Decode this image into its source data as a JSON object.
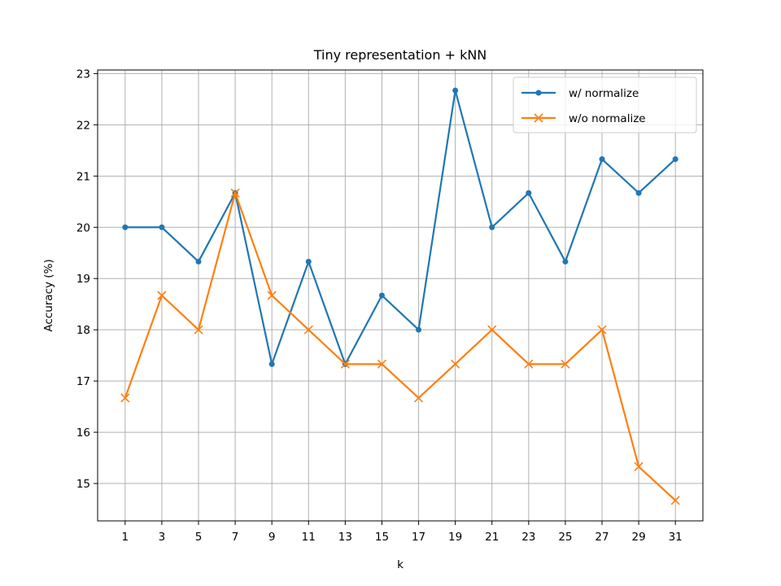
{
  "chart_data": {
    "type": "line",
    "title": "Tiny representation + kNN",
    "xlabel": "k",
    "ylabel": "Accuracy (%)",
    "x": [
      1,
      3,
      5,
      7,
      9,
      11,
      13,
      15,
      17,
      19,
      21,
      23,
      25,
      27,
      29,
      31
    ],
    "x_ticks": [
      "1",
      "3",
      "5",
      "7",
      "9",
      "11",
      "13",
      "15",
      "17",
      "19",
      "21",
      "23",
      "25",
      "27",
      "29",
      "31"
    ],
    "y_ticks": [
      "15",
      "16",
      "17",
      "18",
      "19",
      "20",
      "21",
      "22",
      "23"
    ],
    "xlim": [
      -0.5,
      32.5
    ],
    "ylim": [
      14.27,
      23.07
    ],
    "grid": true,
    "legend_position": "top-right",
    "series": [
      {
        "name": "w/ normalize",
        "color": "#1f77b4",
        "marker": "dot",
        "values": [
          20.0,
          20.0,
          19.33,
          20.67,
          17.33,
          19.33,
          17.33,
          18.67,
          18.0,
          22.67,
          20.0,
          20.67,
          19.33,
          21.33,
          20.67,
          21.33
        ]
      },
      {
        "name": "w/o normalize",
        "color": "#ff7f0e",
        "marker": "x",
        "values": [
          16.67,
          18.67,
          18.0,
          20.67,
          18.67,
          18.0,
          17.33,
          17.33,
          16.67,
          17.33,
          18.0,
          17.33,
          17.33,
          18.0,
          15.33,
          14.67
        ]
      }
    ]
  }
}
